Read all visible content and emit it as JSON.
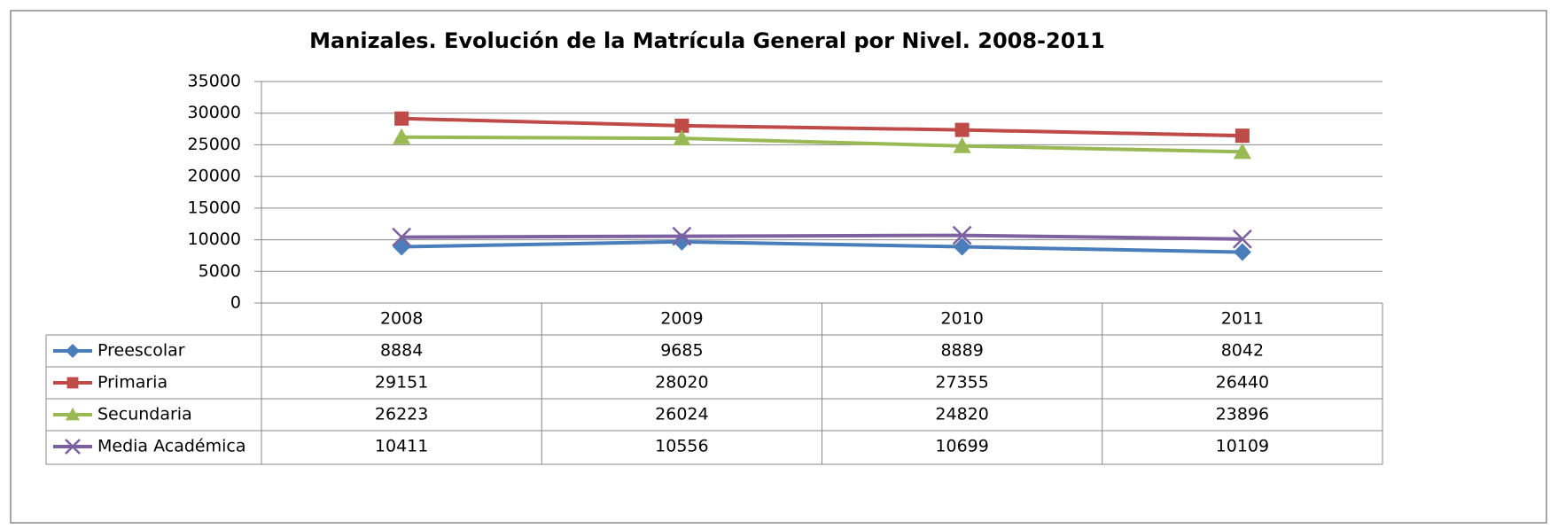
{
  "chart_data": {
    "type": "line",
    "title": "Manizales. Evolución de la Matrícula General por Nivel. 2008-2011",
    "categories": [
      "2008",
      "2009",
      "2010",
      "2011"
    ],
    "series": [
      {
        "name": "Preescolar",
        "color": "#4a7ebb",
        "marker": "diamond",
        "values": [
          8884,
          9685,
          8889,
          8042
        ]
      },
      {
        "name": "Primaria",
        "color": "#be4b48",
        "marker": "square",
        "values": [
          29151,
          28020,
          27355,
          26440
        ]
      },
      {
        "name": "Secundaria",
        "color": "#98b954",
        "marker": "triangle",
        "values": [
          26223,
          26024,
          24820,
          23896
        ]
      },
      {
        "name": "Media Académica",
        "color": "#7d60a0",
        "marker": "x",
        "values": [
          10411,
          10556,
          10699,
          10109
        ]
      }
    ],
    "ylim": [
      0,
      35000
    ],
    "yticks": [
      0,
      5000,
      10000,
      15000,
      20000,
      25000,
      30000,
      35000
    ],
    "grid": true,
    "data_table": true
  }
}
